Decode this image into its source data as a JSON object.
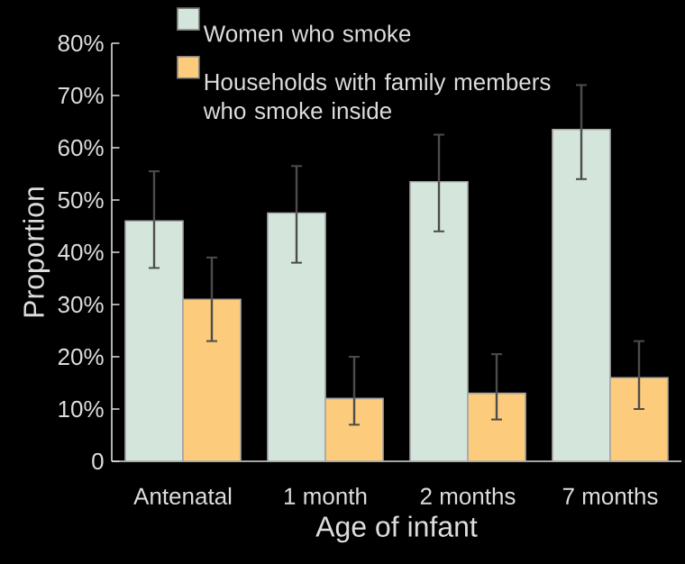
{
  "chart_data": {
    "type": "bar",
    "xlabel": "Age of infant",
    "ylabel": "Proportion",
    "categories": [
      "Antenatal",
      "1 month",
      "2 months",
      "7 months"
    ],
    "ylim": [
      0,
      80
    ],
    "yticks": [
      {
        "value": 0,
        "label": "0"
      },
      {
        "value": 10,
        "label": "10%"
      },
      {
        "value": 20,
        "label": "20%"
      },
      {
        "value": 30,
        "label": "30%"
      },
      {
        "value": 40,
        "label": "40%"
      },
      {
        "value": 50,
        "label": "50%"
      },
      {
        "value": 60,
        "label": "60%"
      },
      {
        "value": 70,
        "label": "70%"
      },
      {
        "value": 80,
        "label": "80%"
      }
    ],
    "legend": "top",
    "series": [
      {
        "name": "Women who smoke",
        "color": "#d4e6dc",
        "values": [
          46,
          47.5,
          53.5,
          63.5
        ],
        "errors": [
          [
            37,
            55.5
          ],
          [
            38,
            56.5
          ],
          [
            44,
            62.5
          ],
          [
            54,
            72
          ]
        ]
      },
      {
        "name": "Households with family members who smoke inside",
        "color": "#fccb7c",
        "values": [
          31,
          12,
          13,
          16
        ],
        "errors": [
          [
            23,
            39
          ],
          [
            7,
            20
          ],
          [
            8,
            20.5
          ],
          [
            10,
            23
          ]
        ]
      }
    ]
  }
}
